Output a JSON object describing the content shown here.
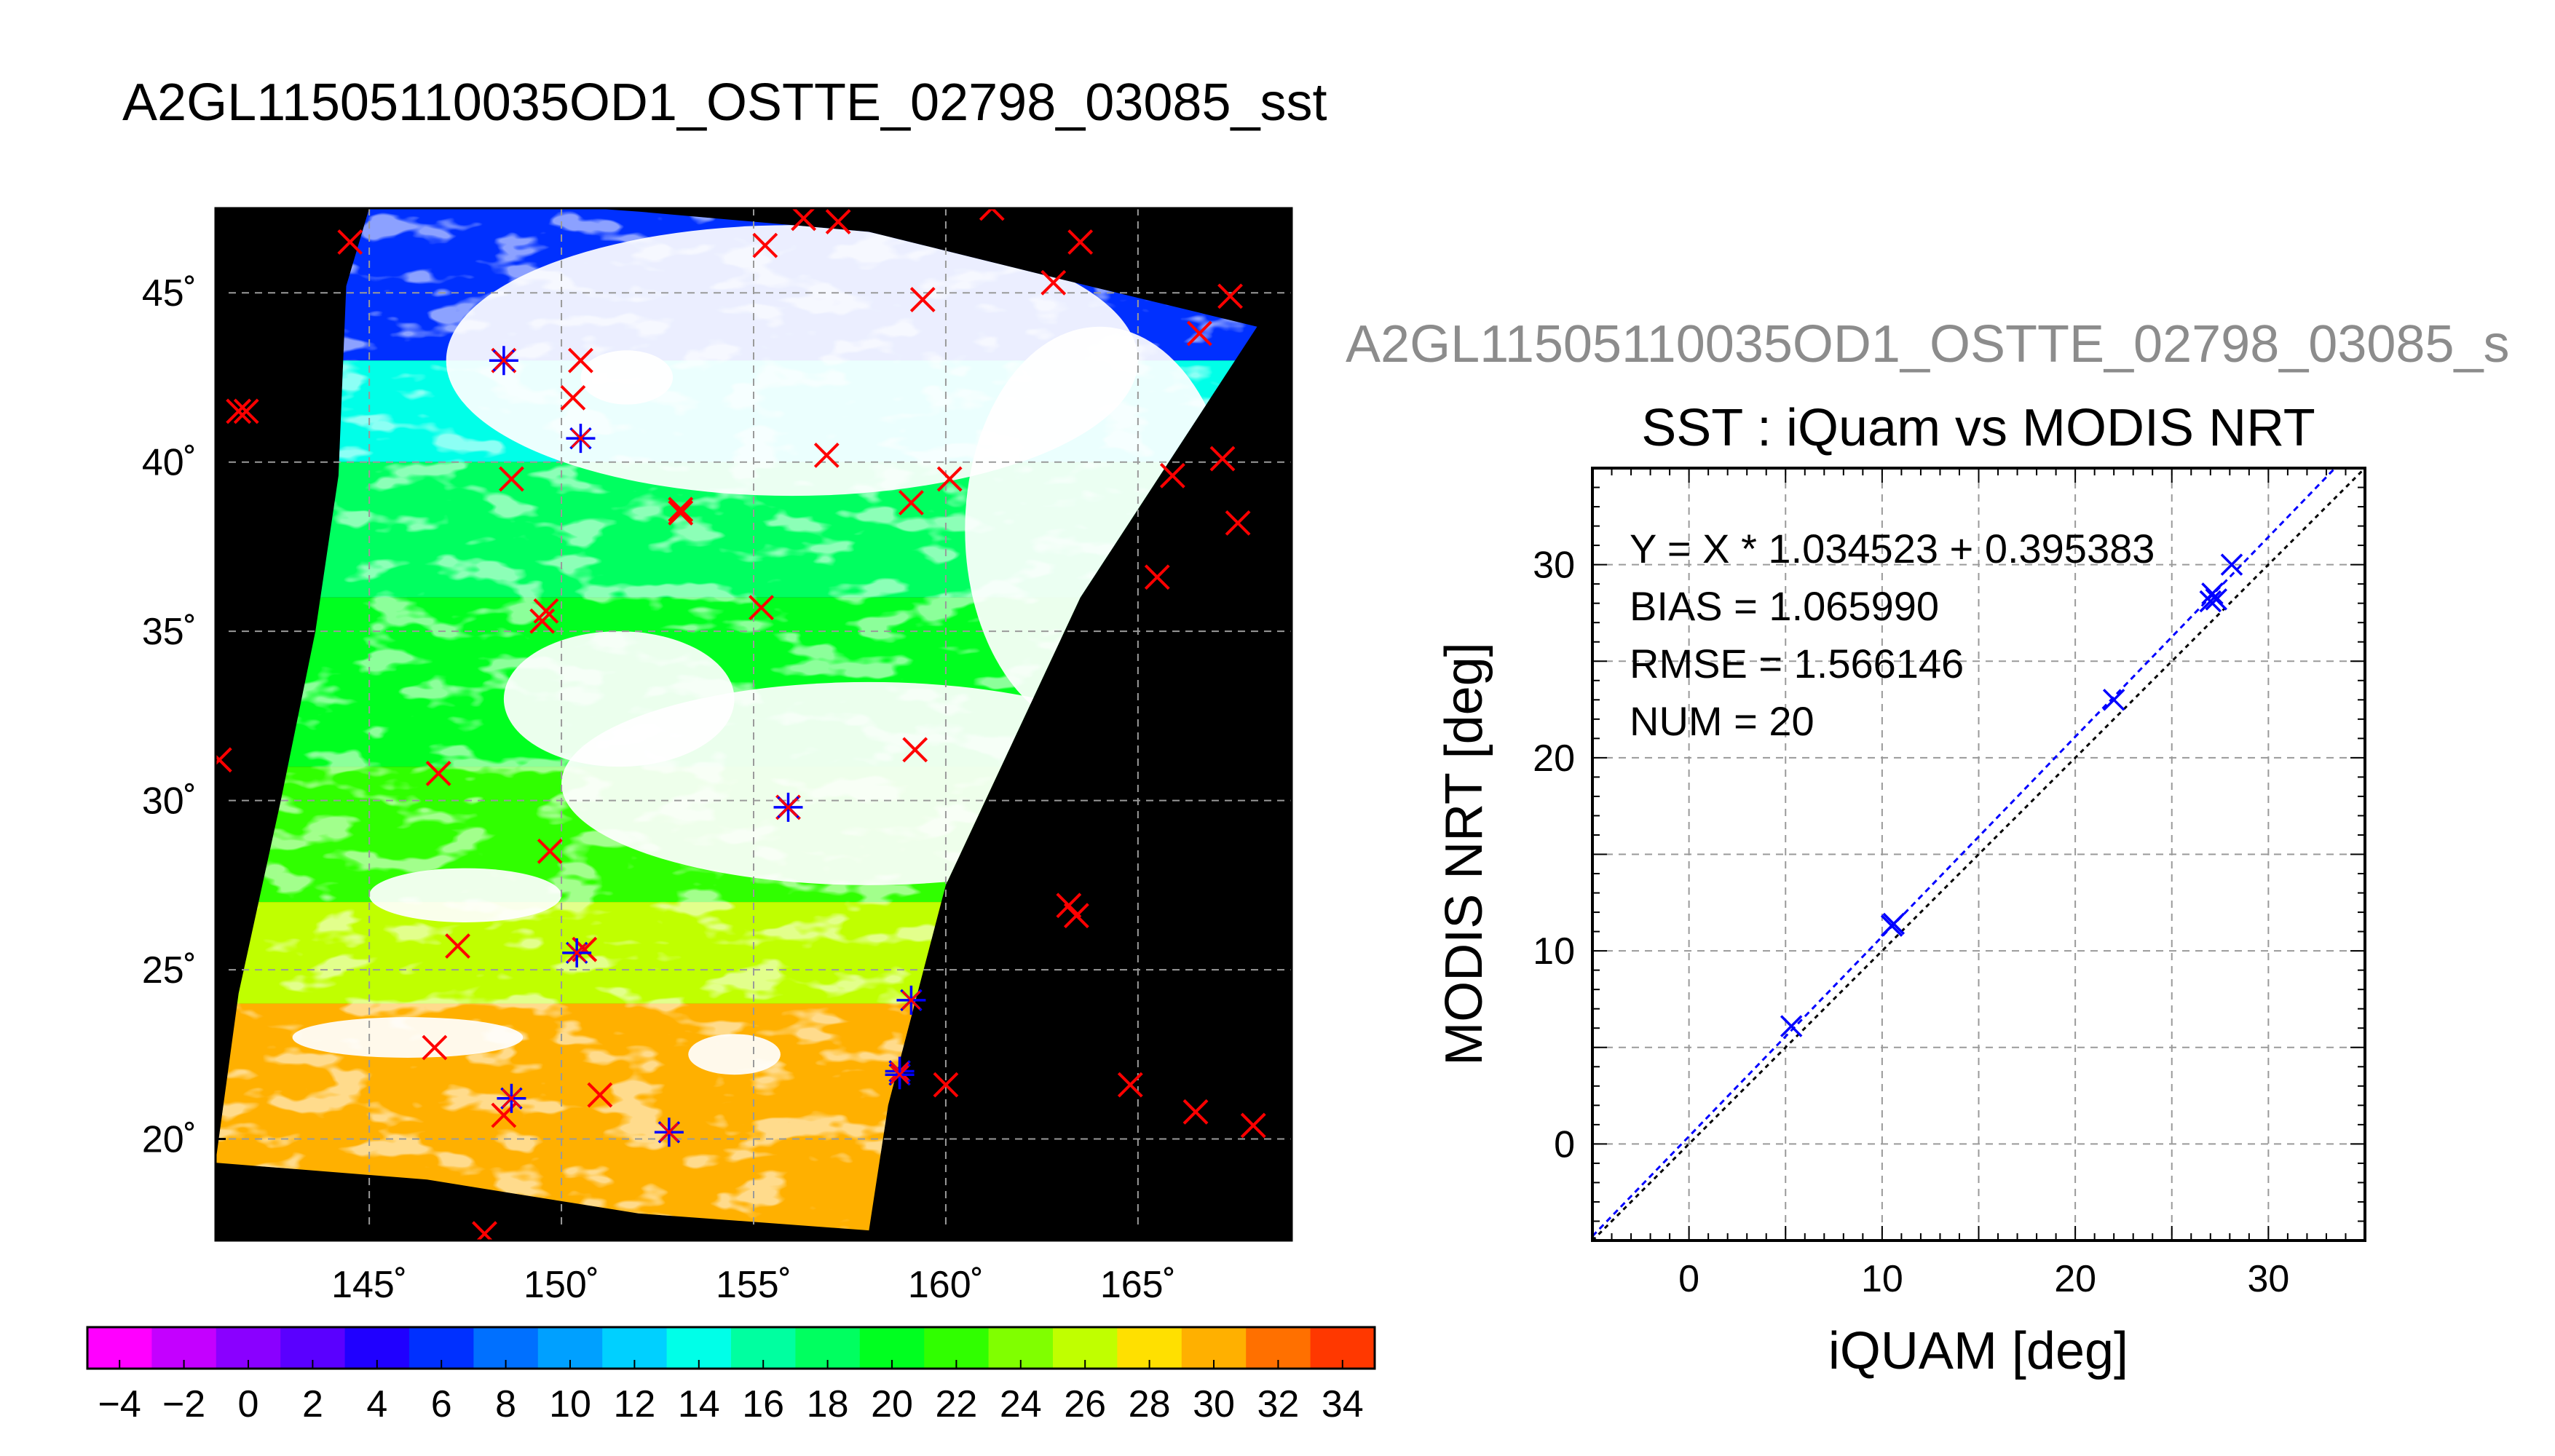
{
  "header": {
    "title": "A2GL11505110035OD1_OSTTE_02798_03085_sst",
    "side_title": "A2GL11505110035OD1_OSTTE_02798_03085_s"
  },
  "colors": {
    "map_background": "#000000",
    "cloud_white": "#ffffff",
    "grid": "#9a9a9a",
    "buoy_marker": "#ff0000",
    "match_marker": "#0000ff",
    "fit_line": "#0000ff",
    "identity_line": "#000000"
  },
  "chart_data": [
    {
      "type": "heatmap",
      "name": "sst-map",
      "xlim": [
        141,
        169
      ],
      "ylim": [
        17,
        47.5
      ],
      "x_ticks": [
        145,
        150,
        155,
        160,
        165
      ],
      "y_ticks": [
        20,
        25,
        30,
        35,
        40,
        45
      ],
      "x_tick_labels": [
        "145˚",
        "150˚",
        "155˚",
        "160˚",
        "165˚"
      ],
      "y_tick_labels": [
        "20˚",
        "25˚",
        "30˚",
        "35˚",
        "40˚",
        "45˚"
      ],
      "grid": true,
      "swath_lon_lat": [
        [
          145,
          47.5
        ],
        [
          147,
          47.8
        ],
        [
          152,
          47.4
        ],
        [
          158,
          46.8
        ],
        [
          163,
          45.4
        ],
        [
          168.1,
          44
        ],
        [
          163.5,
          36
        ],
        [
          160,
          27.5
        ],
        [
          158.5,
          21
        ],
        [
          158,
          17.3
        ],
        [
          152,
          17.8
        ],
        [
          146.5,
          18.8
        ],
        [
          141,
          19.3
        ],
        [
          141.6,
          24.3
        ],
        [
          142.7,
          30
        ],
        [
          143.6,
          35
        ],
        [
          144.2,
          39.6
        ],
        [
          144.4,
          45.2
        ]
      ],
      "temperature_bands": [
        {
          "lat_min": 43,
          "lat_max": 48,
          "sst": 6
        },
        {
          "lat_min": 40,
          "lat_max": 43,
          "sst": 13
        },
        {
          "lat_min": 36,
          "lat_max": 40,
          "sst": 17
        },
        {
          "lat_min": 31,
          "lat_max": 36,
          "sst": 19
        },
        {
          "lat_min": 27,
          "lat_max": 31,
          "sst": 22
        },
        {
          "lat_min": 24,
          "lat_max": 27,
          "sst": 26
        },
        {
          "lat_min": 17,
          "lat_max": 24,
          "sst": 29
        }
      ],
      "cloud_regions": [
        {
          "lon": 156,
          "lat": 43,
          "rx": 9,
          "ry": 4
        },
        {
          "lon": 164,
          "lat": 38,
          "rx": 3.5,
          "ry": 6
        },
        {
          "lon": 158,
          "lat": 30.5,
          "rx": 8,
          "ry": 3
        },
        {
          "lon": 151.5,
          "lat": 33,
          "rx": 3,
          "ry": 2
        },
        {
          "lon": 147.5,
          "lat": 27.2,
          "rx": 2.5,
          "ry": 0.8
        },
        {
          "lon": 146,
          "lat": 23,
          "rx": 3,
          "ry": 0.6
        },
        {
          "lon": 154.5,
          "lat": 22.5,
          "rx": 1.2,
          "ry": 0.6
        },
        {
          "lon": 151.7,
          "lat": 42.5,
          "rx": 1.2,
          "ry": 0.8
        }
      ],
      "buoy_points": [
        [
          144.5,
          46.5
        ],
        [
          141.6,
          41.5
        ],
        [
          141.8,
          41.5
        ],
        [
          141.1,
          31.2
        ],
        [
          146.8,
          30.8
        ],
        [
          147.3,
          25.7
        ],
        [
          146.7,
          22.7
        ],
        [
          148.5,
          20.7
        ],
        [
          148,
          17.2
        ],
        [
          148.5,
          43
        ],
        [
          150.3,
          41.9
        ],
        [
          150.5,
          43
        ],
        [
          148.7,
          39.5
        ],
        [
          149.5,
          35.3
        ],
        [
          149.6,
          35.6
        ],
        [
          149.7,
          28.5
        ],
        [
          150.6,
          25.6
        ],
        [
          151,
          21.3
        ],
        [
          153.1,
          38.5
        ],
        [
          153.1,
          38.6
        ],
        [
          155.2,
          35.7
        ],
        [
          155.9,
          29.8
        ],
        [
          156.9,
          40.2
        ],
        [
          155.3,
          46.4
        ],
        [
          156.3,
          47.2
        ],
        [
          157.2,
          47.1
        ],
        [
          159.4,
          44.8
        ],
        [
          159.1,
          38.8
        ],
        [
          160.1,
          39.5
        ],
        [
          159.2,
          31.5
        ],
        [
          160,
          21.6
        ],
        [
          161.2,
          47.5
        ],
        [
          163.5,
          46.5
        ],
        [
          162.8,
          45.3
        ],
        [
          163.2,
          26.9
        ],
        [
          163.4,
          26.6
        ],
        [
          164.8,
          21.6
        ],
        [
          165.5,
          36.6
        ],
        [
          165.9,
          39.6
        ],
        [
          166.6,
          43.8
        ],
        [
          167.4,
          44.9
        ],
        [
          167.2,
          40.1
        ],
        [
          167.6,
          38.2
        ],
        [
          166.5,
          20.8
        ],
        [
          168,
          20.4
        ]
      ],
      "matchup_points": [
        [
          148.5,
          43
        ],
        [
          150.5,
          40.7
        ],
        [
          150.4,
          25.5
        ],
        [
          155.9,
          29.8
        ],
        [
          148.7,
          21.2
        ],
        [
          152.8,
          20.2
        ],
        [
          158.8,
          22
        ],
        [
          158.8,
          21.9
        ],
        [
          159.1,
          24.1
        ]
      ]
    },
    {
      "type": "scatter",
      "name": "sst-comparison",
      "title": "SST : iQuam vs MODIS NRT",
      "xlabel": "iQUAM [deg]",
      "ylabel": "MODIS NRT [deg]",
      "xlim": [
        -5,
        35
      ],
      "ylim": [
        -5,
        35
      ],
      "x_ticks": [
        0,
        10,
        20,
        30
      ],
      "y_ticks": [
        0,
        10,
        20,
        30
      ],
      "grid": true,
      "annotations": [
        "Y = X * 1.034523 + 0.395383",
        "BIAS = 1.065990",
        "RMSE = 1.566146",
        "NUM = 20"
      ],
      "fit": {
        "slope": 1.034523,
        "intercept": 0.395383
      },
      "points": [
        [
          5.3,
          6.1
        ],
        [
          10.5,
          11.3
        ],
        [
          10.6,
          11.4
        ],
        [
          22,
          23
        ],
        [
          27,
          28.1
        ],
        [
          27.1,
          28.5
        ],
        [
          27.3,
          28.2
        ],
        [
          28.1,
          30
        ]
      ]
    }
  ],
  "colorbar": {
    "min": -5,
    "max": 35,
    "step": 2,
    "tick_values": [
      -4,
      -2,
      0,
      2,
      4,
      6,
      8,
      10,
      12,
      14,
      16,
      18,
      20,
      22,
      24,
      26,
      28,
      30,
      32,
      34
    ],
    "tick_labels": [
      "−4",
      "−2",
      "0",
      "2",
      "4",
      "6",
      "8",
      "10",
      "12",
      "14",
      "16",
      "18",
      "20",
      "22",
      "24",
      "26",
      "28",
      "30",
      "32",
      "34"
    ],
    "colors": [
      "#ff00ff",
      "#c400ff",
      "#8a00ff",
      "#5a00ff",
      "#2000ff",
      "#0030ff",
      "#0070ff",
      "#00a0ff",
      "#00d0ff",
      "#00ffe8",
      "#00ffa0",
      "#00ff60",
      "#00ff20",
      "#30ff00",
      "#80ff00",
      "#c0ff00",
      "#ffe000",
      "#ffb000",
      "#ff7000",
      "#ff3800"
    ]
  }
}
